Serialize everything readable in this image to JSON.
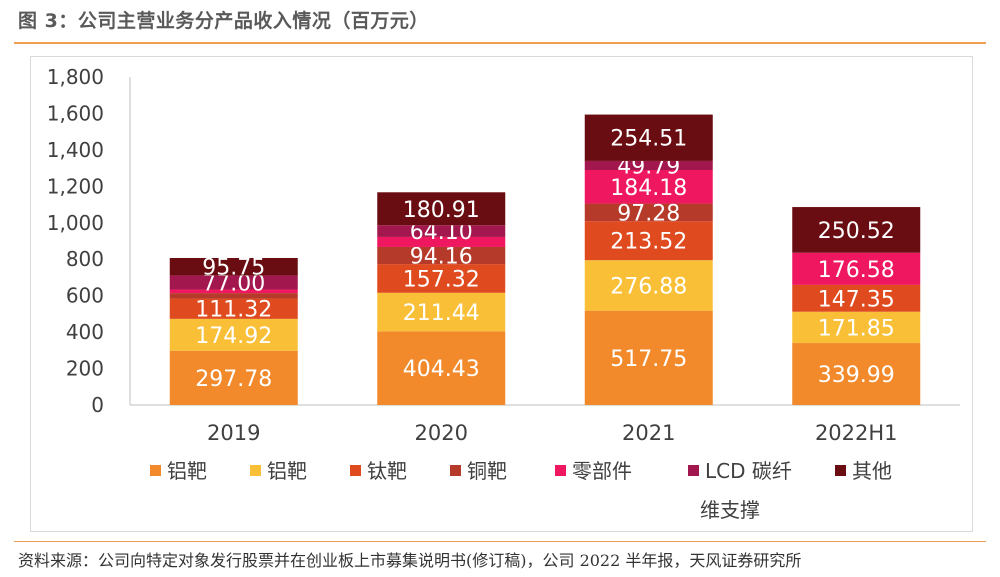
{
  "header": {
    "title": "图 3：公司主营业务分产品收入情况（百万元）"
  },
  "footer": {
    "source": "资料来源：公司向特定对象发行股票并在创业板上市募集说明书(修订稿)，公司 2022 半年报，天风证券研究所"
  },
  "chart_data": {
    "type": "bar",
    "stacked": true,
    "title": "",
    "xlabel": "",
    "ylabel": "",
    "ylim": [
      0,
      1800
    ],
    "yticks": [
      0,
      200,
      400,
      600,
      800,
      1000,
      1200,
      1400,
      1600,
      1800
    ],
    "ytick_labels": [
      "0",
      "200",
      "400",
      "600",
      "800",
      "1,000",
      "1,200",
      "1,400",
      "1,600",
      "1,800"
    ],
    "grid": false,
    "legend_position": "bottom",
    "categories": [
      "2019",
      "2020",
      "2021",
      "2022H1"
    ],
    "series": [
      {
        "name": "铝靶",
        "color": "#F28A2B",
        "values": [
          297.78,
          404.43,
          517.75,
          339.99
        ],
        "labels": [
          "297.78",
          "404.43",
          "517.75",
          "339.99"
        ]
      },
      {
        "name": "铝靶",
        "color": "#F9C037",
        "values": [
          174.92,
          211.44,
          276.88,
          171.85
        ],
        "labels": [
          "174.92",
          "211.44",
          "276.88",
          "171.85"
        ]
      },
      {
        "name": "钛靶",
        "color": "#E04A1F",
        "values": [
          111.32,
          157.32,
          213.52,
          147.35
        ],
        "labels": [
          "111.32",
          "157.32",
          "213.52",
          "147.35"
        ]
      },
      {
        "name": "铜靶",
        "color": "#B53A2A",
        "values": [
          30,
          94.16,
          97.28,
          0
        ],
        "labels": [
          "",
          "94.16",
          "97.28",
          ""
        ]
      },
      {
        "name": "零部件",
        "color": "#EE1760",
        "values": [
          20,
          55,
          184.18,
          176.58
        ],
        "labels": [
          "",
          "",
          "184.18",
          "176.58"
        ]
      },
      {
        "name": "LCD 碳纤维支撑",
        "color": "#A3174F",
        "values": [
          77.0,
          64.1,
          49.79,
          0
        ],
        "labels": [
          "77.00",
          "64.10",
          "49.79",
          ""
        ]
      },
      {
        "name": "其他",
        "color": "#6A0D12",
        "values": [
          95.75,
          180.91,
          254.51,
          250.52
        ],
        "labels": [
          "95.75",
          "180.91",
          "254.51",
          "250.52"
        ]
      }
    ]
  }
}
